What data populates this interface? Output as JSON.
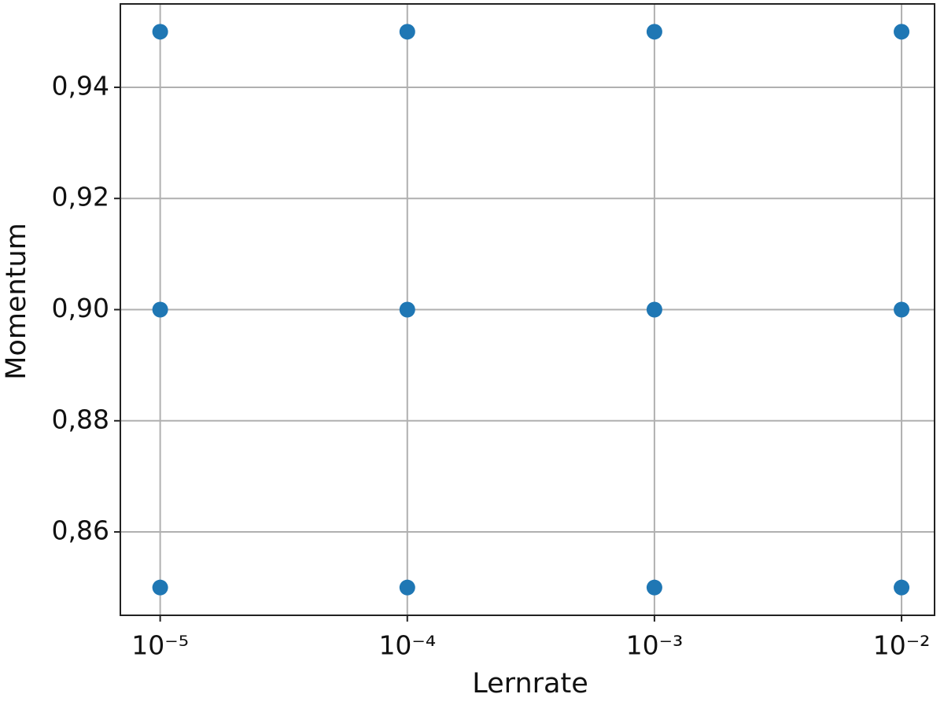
{
  "chart_data": {
    "type": "scatter",
    "xlabel": "Lernrate",
    "ylabel": "Momentum",
    "xscale": "log",
    "grid": true,
    "xlim": [
      6.9e-06,
      0.0136
    ],
    "ylim": [
      0.845,
      0.955
    ],
    "xticks": [
      {
        "value": 1e-05,
        "label": "10⁻⁵"
      },
      {
        "value": 0.0001,
        "label": "10⁻⁴"
      },
      {
        "value": 0.001,
        "label": "10⁻³"
      },
      {
        "value": 0.01,
        "label": "10⁻²"
      }
    ],
    "yticks": [
      {
        "value": 0.86,
        "label": "0,86"
      },
      {
        "value": 0.88,
        "label": "0,88"
      },
      {
        "value": 0.9,
        "label": "0,90"
      },
      {
        "value": 0.92,
        "label": "0,92"
      },
      {
        "value": 0.94,
        "label": "0,94"
      }
    ],
    "series": [
      {
        "color": "#1f77b4",
        "x": [
          1e-05,
          1e-05,
          1e-05,
          0.0001,
          0.0001,
          0.0001,
          0.001,
          0.001,
          0.001,
          0.01,
          0.01,
          0.01
        ],
        "values": [
          0.85,
          0.9,
          0.95,
          0.85,
          0.9,
          0.95,
          0.85,
          0.9,
          0.95,
          0.85,
          0.9,
          0.95
        ]
      }
    ]
  }
}
